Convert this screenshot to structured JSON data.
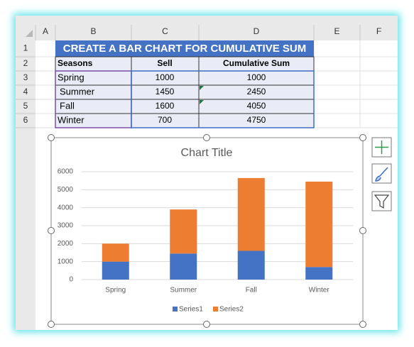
{
  "sheet": {
    "columns": [
      "A",
      "B",
      "C",
      "D",
      "E",
      "F"
    ],
    "rows": [
      1,
      2,
      3,
      4,
      5,
      6
    ],
    "table": {
      "title": "CREATE A BAR CHART FOR CUMULATIVE SUM",
      "headers": [
        "Seasons",
        "Sell",
        "Cumulative Sum"
      ],
      "rows": [
        [
          "Spring",
          1000,
          1000
        ],
        [
          "Summer",
          1450,
          2450
        ],
        [
          "Fall",
          1600,
          4050
        ],
        [
          "Winter",
          700,
          4750
        ]
      ]
    }
  },
  "chart_data": {
    "type": "stacked_bar",
    "title": "Chart Title",
    "categories": [
      "Spring",
      "Summer",
      "Fall",
      "Winter"
    ],
    "series": [
      {
        "name": "Series1",
        "color": "#4472c4",
        "values": [
          1000,
          1450,
          1600,
          700
        ]
      },
      {
        "name": "Series2",
        "color": "#ed7d31",
        "values": [
          1000,
          2450,
          4050,
          4750
        ]
      }
    ],
    "ylim": [
      0,
      6000
    ],
    "yticks": [
      0,
      1000,
      2000,
      3000,
      4000,
      5000,
      6000
    ],
    "grid": true,
    "legend": "bottom"
  }
}
